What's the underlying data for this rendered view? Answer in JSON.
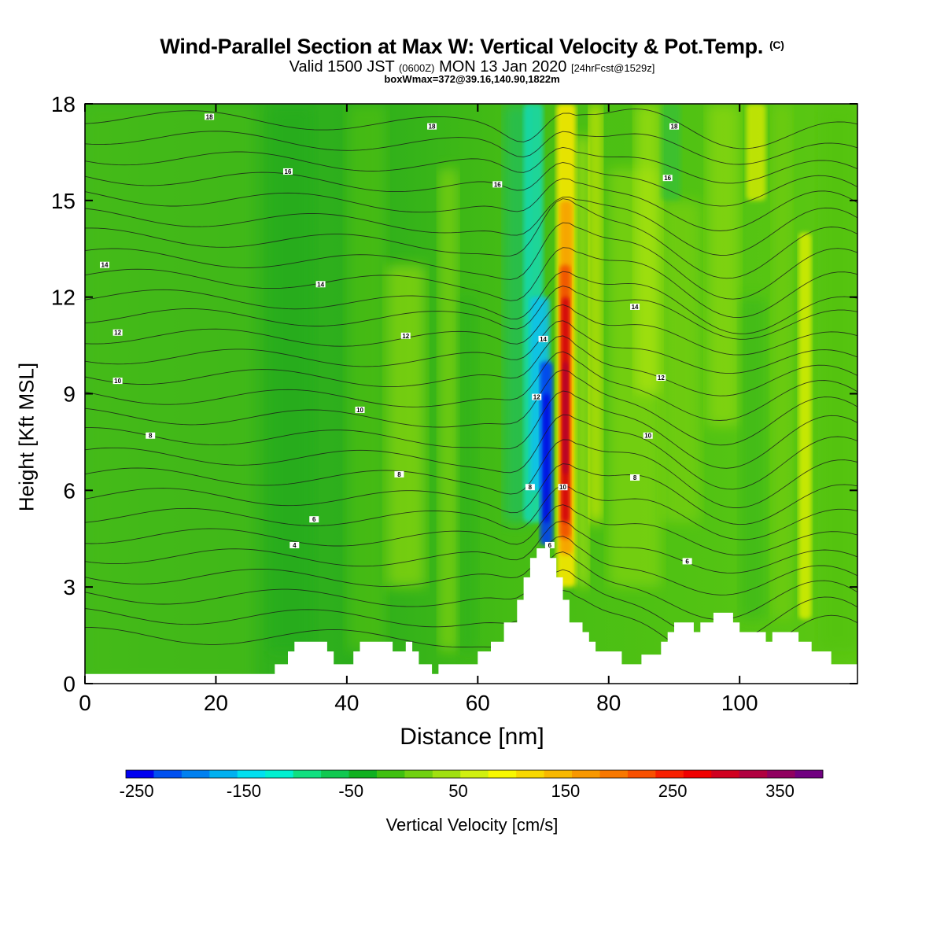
{
  "title": {
    "main": "Wind-Parallel Section at Max W: Vertical Velocity & Pot.Temp.",
    "mark": "(C)",
    "line2_a": "Valid 1500 JST",
    "line2_b": "(0600Z)",
    "line2_c": "MON 13 Jan 2020",
    "line2_d": "[24hrFcst@1529z]",
    "line3": "boxWmax=372@39.16,140.90,1822m"
  },
  "colorbar": {
    "title": "Vertical Velocity [cm/s]",
    "labels": [
      "-250",
      "-150",
      "-50",
      "50",
      "150",
      "250",
      "350"
    ],
    "colors": [
      "#0000f0",
      "#0050f0",
      "#0080f0",
      "#00b0f0",
      "#00e0f0",
      "#00f0d0",
      "#10e080",
      "#10c850",
      "#10b020",
      "#40c010",
      "#70d010",
      "#a0e010",
      "#d0f010",
      "#f8f800",
      "#f8d800",
      "#f8b800",
      "#f89800",
      "#f87800",
      "#f85000",
      "#f82000",
      "#f00000",
      "#d00020",
      "#b00040",
      "#900060",
      "#700080"
    ]
  },
  "chart_data": {
    "type": "heatmap",
    "xlabel": "Distance [nm]",
    "ylabel": "Height [Kft MSL]",
    "xlim": [
      0,
      118
    ],
    "ylim": [
      0,
      18
    ],
    "xticks": [
      "0",
      "20",
      "40",
      "60",
      "80",
      "100"
    ],
    "yticks": [
      "0",
      "3",
      "6",
      "9",
      "12",
      "15",
      "18"
    ],
    "terrain": [
      [
        0,
        0.3
      ],
      [
        29,
        0.3
      ],
      [
        29,
        0.6
      ],
      [
        31,
        0.6
      ],
      [
        31,
        1.0
      ],
      [
        32,
        1.0
      ],
      [
        32,
        1.3
      ],
      [
        37,
        1.3
      ],
      [
        37,
        1.0
      ],
      [
        38,
        1.0
      ],
      [
        38,
        0.6
      ],
      [
        41,
        0.6
      ],
      [
        41,
        1.0
      ],
      [
        42,
        1.0
      ],
      [
        42,
        1.3
      ],
      [
        44,
        1.3
      ],
      [
        44,
        1.3
      ],
      [
        47,
        1.3
      ],
      [
        47,
        1.0
      ],
      [
        49,
        1.0
      ],
      [
        49,
        1.3
      ],
      [
        50,
        1.3
      ],
      [
        50,
        1.0
      ],
      [
        51,
        1.0
      ],
      [
        51,
        0.6
      ],
      [
        53,
        0.6
      ],
      [
        53,
        0.3
      ],
      [
        54,
        0.3
      ],
      [
        54,
        0.6
      ],
      [
        60,
        0.6
      ],
      [
        60,
        1.0
      ],
      [
        62,
        1.0
      ],
      [
        62,
        1.3
      ],
      [
        64,
        1.3
      ],
      [
        64,
        1.9
      ],
      [
        66,
        1.9
      ],
      [
        66,
        2.6
      ],
      [
        67,
        2.6
      ],
      [
        67,
        3.3
      ],
      [
        68,
        3.3
      ],
      [
        68,
        3.9
      ],
      [
        69,
        3.9
      ],
      [
        69,
        4.2
      ],
      [
        71,
        4.2
      ],
      [
        71,
        3.9
      ],
      [
        72,
        3.9
      ],
      [
        72,
        3.3
      ],
      [
        73,
        3.3
      ],
      [
        73,
        2.6
      ],
      [
        74,
        2.6
      ],
      [
        74,
        1.9
      ],
      [
        76,
        1.9
      ],
      [
        76,
        1.6
      ],
      [
        77,
        1.6
      ],
      [
        77,
        1.3
      ],
      [
        78,
        1.3
      ],
      [
        78,
        1.0
      ],
      [
        82,
        1.0
      ],
      [
        82,
        0.6
      ],
      [
        85,
        0.6
      ],
      [
        85,
        0.9
      ],
      [
        88,
        0.9
      ],
      [
        88,
        1.3
      ],
      [
        89,
        1.3
      ],
      [
        89,
        1.6
      ],
      [
        90,
        1.6
      ],
      [
        90,
        1.9
      ],
      [
        93,
        1.9
      ],
      [
        93,
        1.6
      ],
      [
        94,
        1.6
      ],
      [
        94,
        1.9
      ],
      [
        96,
        1.9
      ],
      [
        96,
        2.2
      ],
      [
        99,
        2.2
      ],
      [
        99,
        1.9
      ],
      [
        100,
        1.9
      ],
      [
        100,
        1.6
      ],
      [
        104,
        1.6
      ],
      [
        104,
        1.3
      ],
      [
        105,
        1.3
      ],
      [
        105,
        1.6
      ],
      [
        109,
        1.6
      ],
      [
        109,
        1.3
      ],
      [
        111,
        1.3
      ],
      [
        111,
        1.0
      ],
      [
        114,
        1.0
      ],
      [
        114,
        0.6
      ],
      [
        118,
        0.6
      ]
    ],
    "updraft_max_cm_s": 372,
    "downdraft_min_cm_s": -250,
    "contour_labels": [
      {
        "x": 19,
        "y": 17.6,
        "text": "18"
      },
      {
        "x": 53,
        "y": 17.3,
        "text": "18"
      },
      {
        "x": 90,
        "y": 17.3,
        "text": "18"
      },
      {
        "x": 31,
        "y": 15.9,
        "text": "16"
      },
      {
        "x": 63,
        "y": 15.5,
        "text": "16"
      },
      {
        "x": 89,
        "y": 15.7,
        "text": "16"
      },
      {
        "x": 3,
        "y": 13.0,
        "text": "14"
      },
      {
        "x": 36,
        "y": 12.4,
        "text": "14"
      },
      {
        "x": 70,
        "y": 10.7,
        "text": "14"
      },
      {
        "x": 84,
        "y": 11.7,
        "text": "14"
      },
      {
        "x": 5,
        "y": 10.9,
        "text": "12"
      },
      {
        "x": 49,
        "y": 10.8,
        "text": "12"
      },
      {
        "x": 69,
        "y": 8.9,
        "text": "12"
      },
      {
        "x": 88,
        "y": 9.5,
        "text": "12"
      },
      {
        "x": 5,
        "y": 9.4,
        "text": "10"
      },
      {
        "x": 42,
        "y": 8.5,
        "text": "10"
      },
      {
        "x": 73,
        "y": 6.1,
        "text": "10"
      },
      {
        "x": 86,
        "y": 7.7,
        "text": "10"
      },
      {
        "x": 10,
        "y": 7.7,
        "text": "8"
      },
      {
        "x": 48,
        "y": 6.5,
        "text": "8"
      },
      {
        "x": 68,
        "y": 6.1,
        "text": "8"
      },
      {
        "x": 84,
        "y": 6.4,
        "text": "8"
      },
      {
        "x": 35,
        "y": 5.1,
        "text": "6"
      },
      {
        "x": 71,
        "y": 4.3,
        "text": "6"
      },
      {
        "x": 92,
        "y": 3.8,
        "text": "6"
      },
      {
        "x": 32,
        "y": 4.3,
        "text": "4"
      }
    ]
  }
}
